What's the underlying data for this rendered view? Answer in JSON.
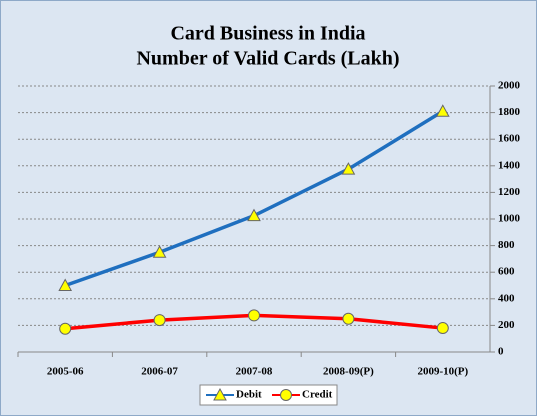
{
  "chart_data": {
    "type": "line",
    "title": "Card Business in India",
    "subtitle": "Number of Valid Cards (Lakh)",
    "categories": [
      "2005-06",
      "2006-07",
      "2007-08",
      "2008-09(P)",
      "2009-10(P)"
    ],
    "series": [
      {
        "name": "Debit",
        "color": "#1f6fbf",
        "marker": "triangle",
        "marker_color": "#ffff00",
        "values": [
          500,
          750,
          1025,
          1375,
          1810
        ]
      },
      {
        "name": "Credit",
        "color": "#ff0000",
        "marker": "circle",
        "marker_color": "#ffff00",
        "values": [
          175,
          240,
          275,
          250,
          180
        ]
      }
    ],
    "ylim": [
      0,
      2000
    ],
    "yticks": [
      0,
      200,
      400,
      600,
      800,
      1000,
      1200,
      1400,
      1600,
      1800,
      2000
    ],
    "grid": true,
    "legend": "bottom"
  }
}
